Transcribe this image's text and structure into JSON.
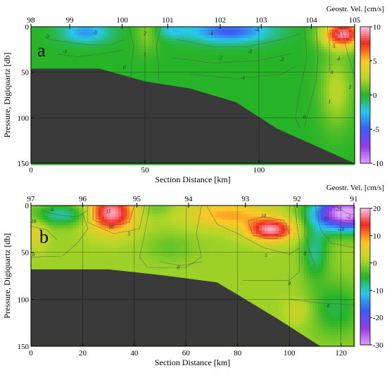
{
  "chart_data": [
    {
      "type": "heatmap",
      "panel_label": "a",
      "colorbar_title": "Geostr. Vel. [cm/s]",
      "xlabel": "Section Distance [km]",
      "ylabel": "Pressure, Digiquartz [db]",
      "xlim": [
        0,
        142
      ],
      "ylim": [
        150,
        0
      ],
      "x_ticks": [
        0,
        50,
        100
      ],
      "y_ticks": [
        0,
        50,
        100,
        150
      ],
      "color_range": [
        -10,
        10
      ],
      "colorbar_ticks": [
        10,
        5,
        0,
        -5,
        -10
      ],
      "stations": [
        {
          "label": "98",
          "km": 0
        },
        {
          "label": "99",
          "km": 17
        },
        {
          "label": "100",
          "km": 40
        },
        {
          "label": "101",
          "km": 60
        },
        {
          "label": "102",
          "km": 83
        },
        {
          "label": "103",
          "km": 101
        },
        {
          "label": "104",
          "km": 123
        },
        {
          "label": "105",
          "km": 142
        }
      ],
      "bathymetry": [
        [
          0,
          46
        ],
        [
          30,
          46
        ],
        [
          50,
          60
        ],
        [
          70,
          68
        ],
        [
          90,
          83
        ],
        [
          108,
          112
        ],
        [
          142,
          150
        ]
      ],
      "features": [
        {
          "x": 51,
          "y": 6,
          "sx": 5,
          "sy": 22,
          "v": 1.6
        },
        {
          "x": 87,
          "y": 5,
          "sx": 17,
          "sy": 12,
          "v": -5.0
        },
        {
          "x": 62,
          "y": 4,
          "sx": 7,
          "sy": 9,
          "v": -2.0
        },
        {
          "x": 24,
          "y": 6,
          "sx": 10,
          "sy": 11,
          "v": -3.6
        },
        {
          "x": 137,
          "y": 8,
          "sx": 9,
          "sy": 15,
          "v": 9.0
        },
        {
          "x": 134,
          "y": 70,
          "sx": 7,
          "sy": 40,
          "v": 2.6
        }
      ],
      "contour_labels": [
        {
          "text": "-2",
          "x": 7,
          "y": 11
        },
        {
          "text": "-3",
          "x": 28,
          "y": 6
        },
        {
          "text": "-1",
          "x": 15,
          "y": 27
        },
        {
          "text": "2",
          "x": 50,
          "y": 7
        },
        {
          "text": "1",
          "x": 50,
          "y": 30
        },
        {
          "text": "0",
          "x": 41,
          "y": 44
        },
        {
          "text": "-4",
          "x": 79,
          "y": 7
        },
        {
          "text": "-4",
          "x": 99,
          "y": 3
        },
        {
          "text": "-2",
          "x": 83,
          "y": 34
        },
        {
          "text": "-3",
          "x": 96,
          "y": 27
        },
        {
          "text": "-1",
          "x": 93,
          "y": 56
        },
        {
          "text": "-2",
          "x": 110,
          "y": 36
        },
        {
          "text": "6",
          "x": 135,
          "y": 7
        },
        {
          "text": "5",
          "x": 133,
          "y": 21
        },
        {
          "text": "4",
          "x": 135,
          "y": 35
        },
        {
          "text": "3",
          "x": 132,
          "y": 50
        },
        {
          "text": "2",
          "x": 140,
          "y": 66
        },
        {
          "text": "1",
          "x": 131,
          "y": 82
        },
        {
          "text": "0",
          "x": 120,
          "y": 99
        }
      ],
      "contour_lines": [
        [
          [
            43,
            0
          ],
          [
            45,
            20
          ],
          [
            44,
            45
          ],
          [
            44,
            60
          ]
        ],
        [
          [
            57,
            0
          ],
          [
            55,
            20
          ],
          [
            56,
            45
          ],
          [
            56,
            60
          ]
        ],
        [
          [
            8,
            14
          ],
          [
            25,
            20
          ],
          [
            35,
            20
          ],
          [
            41,
            14
          ]
        ],
        [
          [
            12,
            30
          ],
          [
            20,
            33
          ],
          [
            30,
            30
          ],
          [
            40,
            26
          ]
        ],
        [
          [
            64,
            14
          ],
          [
            80,
            22
          ],
          [
            95,
            22
          ],
          [
            110,
            14
          ],
          [
            118,
            8
          ]
        ],
        [
          [
            62,
            34
          ],
          [
            80,
            40
          ],
          [
            100,
            37
          ],
          [
            114,
            30
          ]
        ],
        [
          [
            70,
            52
          ],
          [
            90,
            57
          ],
          [
            110,
            52
          ],
          [
            116,
            44
          ]
        ],
        [
          [
            120,
            0
          ],
          [
            121,
            35
          ],
          [
            118,
            70
          ],
          [
            116,
            100
          ],
          [
            118,
            112
          ]
        ],
        [
          [
            125,
            0
          ],
          [
            126,
            30
          ],
          [
            125,
            60
          ],
          [
            122,
            90
          ],
          [
            120,
            110
          ]
        ],
        [
          [
            130,
            0
          ],
          [
            131,
            20
          ],
          [
            131,
            50
          ]
        ],
        [
          [
            136,
            0
          ],
          [
            139,
            30
          ],
          [
            142,
            55
          ]
        ]
      ]
    },
    {
      "type": "heatmap",
      "panel_label": "b",
      "colorbar_title": "Geostr. Vel. [cm/s]",
      "xlabel": "Section Distance [km]",
      "ylabel": "Pressure, Digiquartz [db]",
      "xlim": [
        0,
        125
      ],
      "ylim": [
        150,
        0
      ],
      "x_ticks": [
        0,
        20,
        40,
        60,
        80,
        100,
        120
      ],
      "y_ticks": [
        0,
        50,
        100,
        150
      ],
      "color_range": [
        -30,
        20
      ],
      "colorbar_ticks": [
        20,
        10,
        0,
        -10,
        -20,
        -30
      ],
      "stations": [
        {
          "label": "97",
          "km": 0
        },
        {
          "label": "96",
          "km": 20
        },
        {
          "label": "95",
          "km": 41
        },
        {
          "label": "94",
          "km": 61
        },
        {
          "label": "93",
          "km": 83
        },
        {
          "label": "92",
          "km": 103
        },
        {
          "label": "91",
          "km": 125
        }
      ],
      "bathymetry": [
        [
          0,
          68
        ],
        [
          30,
          68
        ],
        [
          50,
          74
        ],
        [
          72,
          82
        ],
        [
          80,
          95
        ],
        [
          95,
          120
        ],
        [
          112,
          150
        ]
      ],
      "features": [
        {
          "x": 31,
          "y": 8,
          "sx": 9,
          "sy": 20,
          "v": 19
        },
        {
          "x": 12,
          "y": 10,
          "sx": 11,
          "sy": 11,
          "v": -9
        },
        {
          "x": 2,
          "y": 30,
          "sx": 4,
          "sy": 16,
          "v": 5
        },
        {
          "x": 93,
          "y": 26,
          "sx": 9,
          "sy": 12,
          "v": 18
        },
        {
          "x": 76,
          "y": 10,
          "sx": 16,
          "sy": 14,
          "v": 9
        },
        {
          "x": 54,
          "y": 45,
          "sx": 9,
          "sy": 14,
          "v": -2.5
        },
        {
          "x": 48,
          "y": 4,
          "sx": 7,
          "sy": 8,
          "v": -2.5
        },
        {
          "x": 122,
          "y": 8,
          "sx": 12,
          "sy": 18,
          "v": -32
        },
        {
          "x": 110,
          "y": 48,
          "sx": 5,
          "sy": 30,
          "v": -8
        },
        {
          "x": 118,
          "y": 110,
          "sx": 10,
          "sy": 30,
          "v": -6
        },
        {
          "x": 104,
          "y": 112,
          "sx": 6,
          "sy": 14,
          "v": 3
        }
      ],
      "contour_labels": [
        {
          "text": "10",
          "x": 1,
          "y": 17
        },
        {
          "text": "-5",
          "x": 8,
          "y": 4
        },
        {
          "text": "15",
          "x": 30,
          "y": 6
        },
        {
          "text": "10",
          "x": 31,
          "y": 23
        },
        {
          "text": "5",
          "x": 38,
          "y": 30
        },
        {
          "text": "0",
          "x": 1,
          "y": 52
        },
        {
          "text": "0",
          "x": 57,
          "y": 66
        },
        {
          "text": "10",
          "x": 90,
          "y": 11
        },
        {
          "text": "5",
          "x": 91,
          "y": 53
        },
        {
          "text": "0",
          "x": 100,
          "y": 83
        },
        {
          "text": "0",
          "x": 115,
          "y": 107
        },
        {
          "text": "-25",
          "x": 119,
          "y": 4
        },
        {
          "text": "-15",
          "x": 114,
          "y": 14
        },
        {
          "text": "-10",
          "x": 120,
          "y": 25
        },
        {
          "text": "-2",
          "x": 123,
          "y": 12
        },
        {
          "text": "0",
          "x": 106,
          "y": 51
        }
      ],
      "contour_lines": [
        [
          [
            4,
            5
          ],
          [
            10,
            10
          ],
          [
            18,
            12
          ],
          [
            22,
            5
          ]
        ],
        [
          [
            0,
            22
          ],
          [
            6,
            26
          ],
          [
            10,
            36
          ]
        ],
        [
          [
            0,
            55
          ],
          [
            12,
            54
          ],
          [
            18,
            40
          ],
          [
            22,
            25
          ],
          [
            20,
            8
          ]
        ],
        [
          [
            24,
            0
          ],
          [
            24,
            15
          ],
          [
            30,
            22
          ],
          [
            38,
            18
          ],
          [
            40,
            0
          ]
        ],
        [
          [
            22,
            0
          ],
          [
            22,
            18
          ],
          [
            32,
            30
          ],
          [
            42,
            25
          ],
          [
            44,
            0
          ]
        ],
        [
          [
            46,
            0
          ],
          [
            44,
            30
          ],
          [
            42,
            55
          ],
          [
            45,
            66
          ],
          [
            60,
            66
          ],
          [
            66,
            55
          ],
          [
            64,
            30
          ],
          [
            66,
            0
          ]
        ],
        [
          [
            50,
            60
          ],
          [
            58,
            64
          ],
          [
            66,
            60
          ]
        ],
        [
          [
            68,
            0
          ],
          [
            72,
            20
          ],
          [
            80,
            30
          ],
          [
            90,
            45
          ],
          [
            100,
            52
          ],
          [
            104,
            45
          ]
        ],
        [
          [
            84,
            16
          ],
          [
            90,
            12
          ],
          [
            98,
            16
          ],
          [
            100,
            30
          ],
          [
            94,
            36
          ],
          [
            86,
            32
          ],
          [
            84,
            16
          ]
        ],
        [
          [
            82,
            80
          ],
          [
            100,
            80
          ],
          [
            104,
            70
          ],
          [
            104,
            40
          ],
          [
            102,
            0
          ]
        ],
        [
          [
            106,
            0
          ],
          [
            106,
            30
          ],
          [
            108,
            50
          ],
          [
            110,
            65
          ]
        ],
        [
          [
            110,
            0
          ],
          [
            112,
            25
          ],
          [
            116,
            40
          ],
          [
            125,
            45
          ]
        ],
        [
          [
            112,
            0
          ],
          [
            116,
            15
          ],
          [
            125,
            20
          ]
        ],
        [
          [
            118,
            0
          ],
          [
            122,
            8
          ],
          [
            125,
            10
          ]
        ],
        [
          [
            100,
            100
          ],
          [
            112,
            104
          ],
          [
            125,
            106
          ]
        ]
      ]
    }
  ]
}
